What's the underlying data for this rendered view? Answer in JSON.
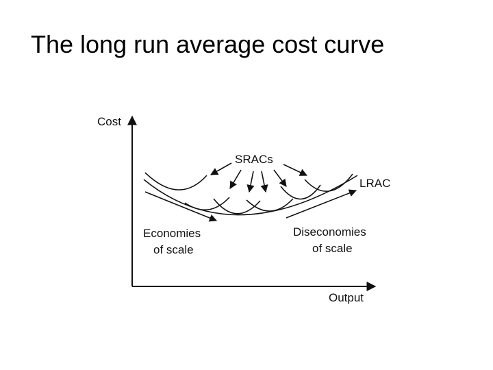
{
  "title": "The long run average cost curve",
  "diagram": {
    "y_axis_label": "Cost",
    "x_axis_label": "Output",
    "srac_label": "SRACs",
    "lrac_label": "LRAC",
    "economies": [
      "Economies",
      "of scale"
    ],
    "diseconomies": [
      "Diseconomies",
      "of scale"
    ]
  }
}
